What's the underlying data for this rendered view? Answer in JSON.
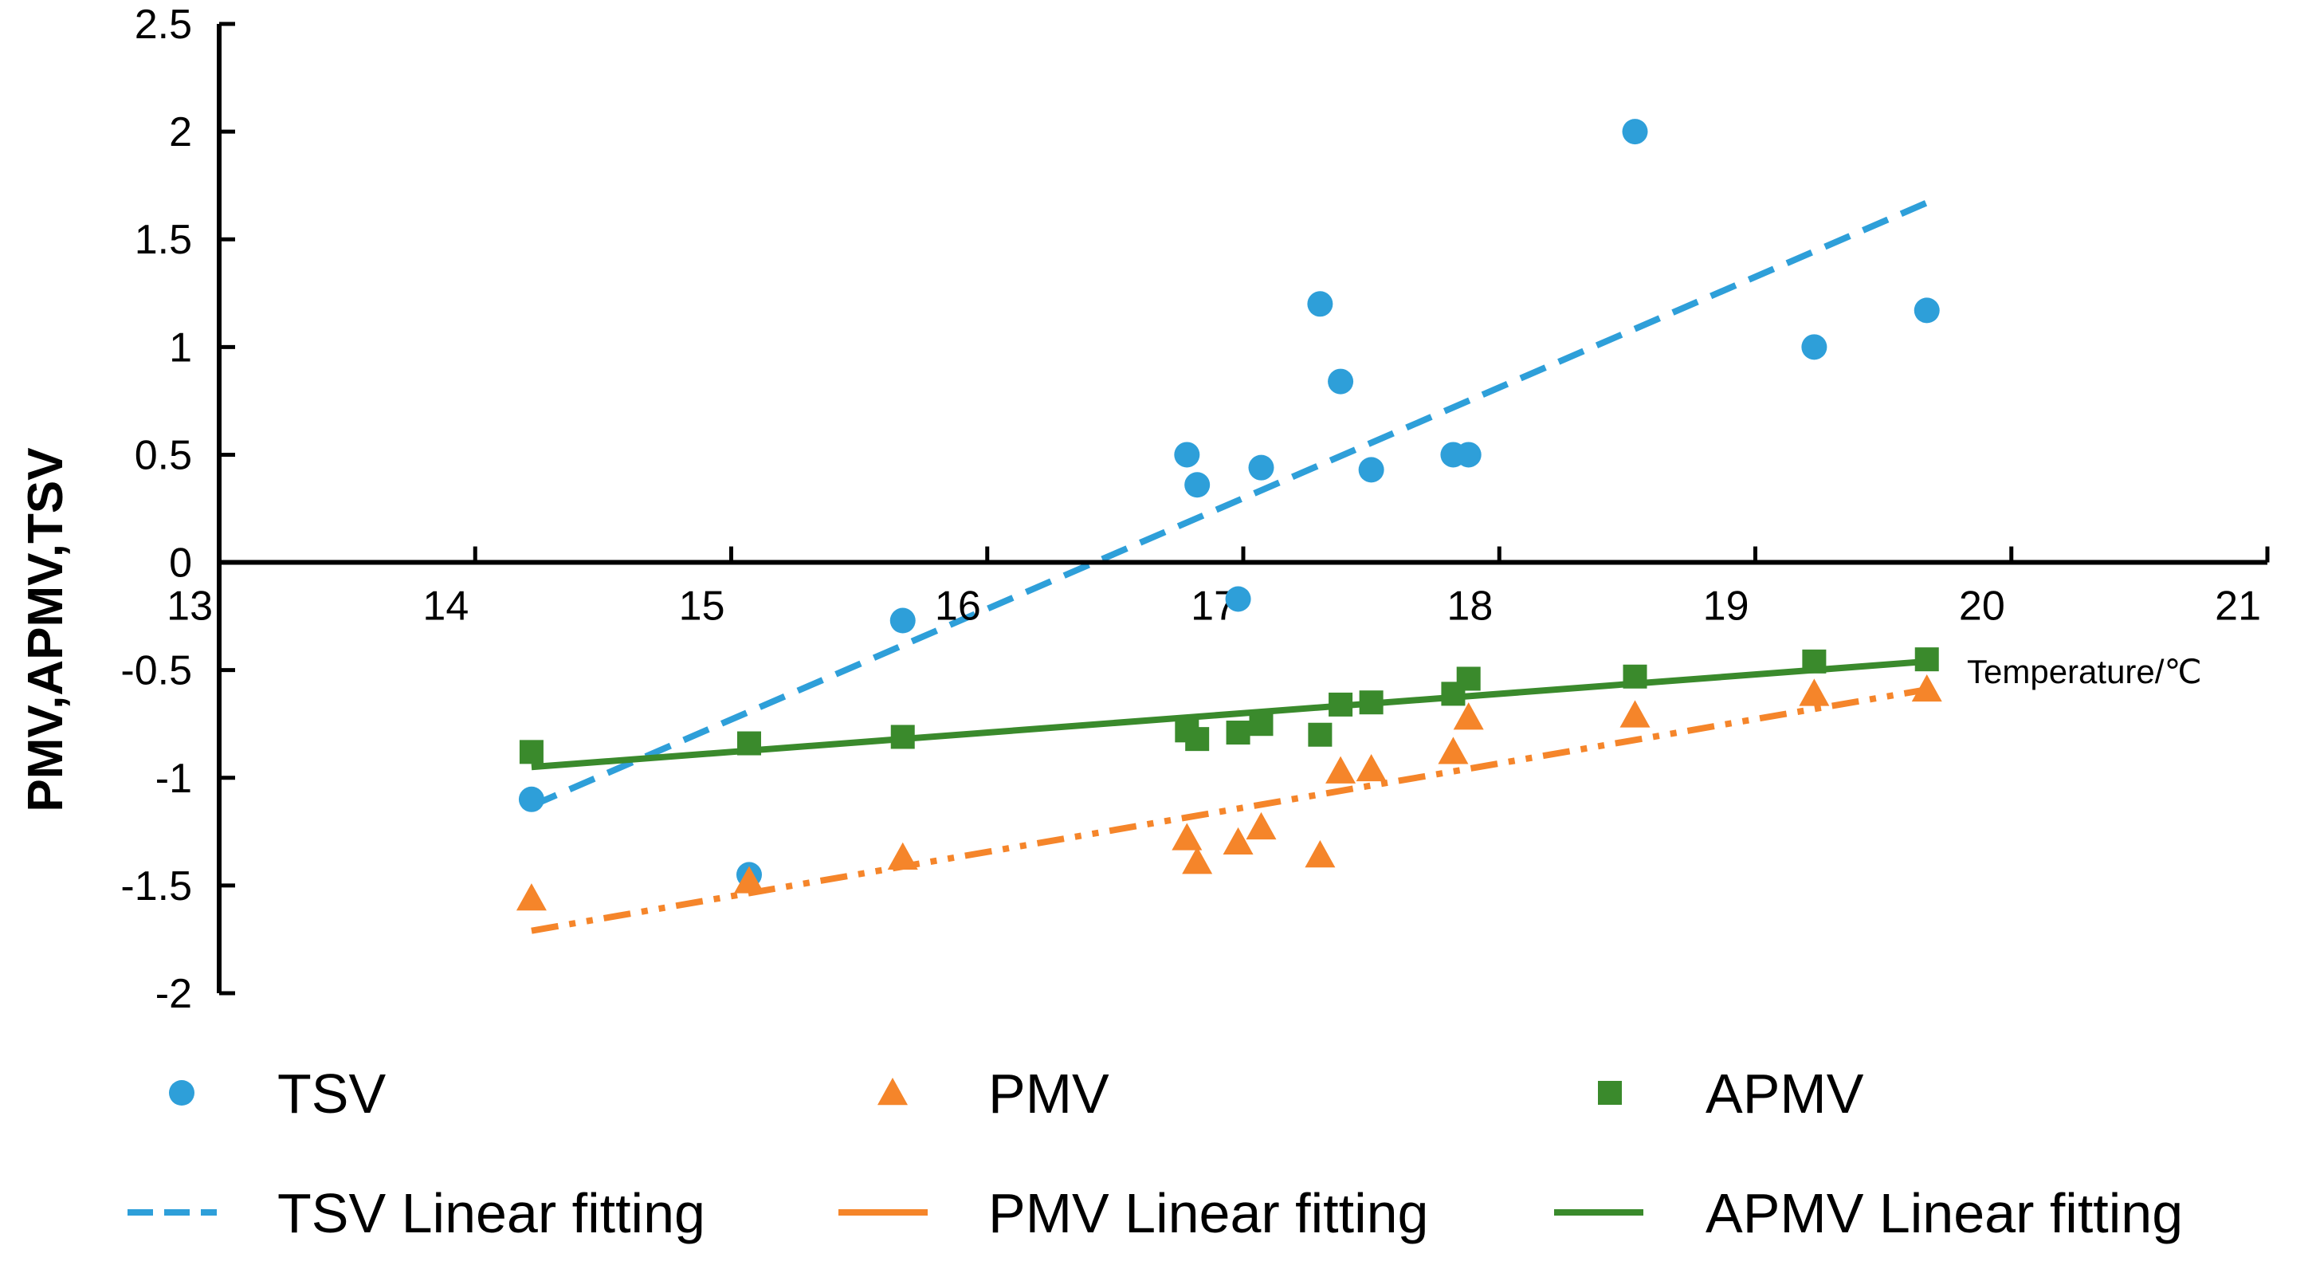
{
  "chart_data": {
    "type": "scatter",
    "xlabel": "Temperature/℃",
    "ylabel": "PMV,APMV,TSV",
    "xlim": [
      13,
      21
    ],
    "ylim": [
      -2,
      2.5
    ],
    "x_ticks": [
      "13",
      "14",
      "15",
      "16",
      "17",
      "18",
      "19",
      "20",
      "21"
    ],
    "y_ticks": [
      "2.5",
      "2",
      "1.5",
      "1",
      "0.5",
      "0",
      "-0.5",
      "-1",
      "-1.5",
      "-2"
    ],
    "x_axis_crosses_y_at": 0,
    "grid": false,
    "legend_position": "bottom",
    "series": [
      {
        "name": "TSV",
        "marker": "circle",
        "color": "#2e9fd9",
        "points": [
          [
            14.22,
            -1.1
          ],
          [
            15.07,
            -1.45
          ],
          [
            15.67,
            -0.27
          ],
          [
            16.78,
            0.5
          ],
          [
            16.82,
            0.36
          ],
          [
            16.98,
            -0.17
          ],
          [
            17.07,
            0.44
          ],
          [
            17.3,
            1.2
          ],
          [
            17.38,
            0.84
          ],
          [
            17.5,
            0.43
          ],
          [
            17.82,
            0.5
          ],
          [
            17.88,
            0.5
          ],
          [
            18.53,
            2.0
          ],
          [
            19.23,
            1.0
          ],
          [
            19.67,
            1.17
          ]
        ]
      },
      {
        "name": "PMV",
        "marker": "triangle",
        "color": "#f5852a",
        "points": [
          [
            14.22,
            -1.56
          ],
          [
            15.07,
            -1.48
          ],
          [
            15.67,
            -1.37
          ],
          [
            16.78,
            -1.28
          ],
          [
            16.82,
            -1.39
          ],
          [
            16.98,
            -1.3
          ],
          [
            17.07,
            -1.23
          ],
          [
            17.3,
            -1.36
          ],
          [
            17.38,
            -0.97
          ],
          [
            17.5,
            -0.96
          ],
          [
            17.82,
            -0.88
          ],
          [
            17.88,
            -0.72
          ],
          [
            18.53,
            -0.71
          ],
          [
            19.23,
            -0.61
          ],
          [
            19.67,
            -0.59
          ]
        ]
      },
      {
        "name": "APMV",
        "marker": "square",
        "color": "#3a8a2c",
        "points": [
          [
            14.22,
            -0.88
          ],
          [
            15.07,
            -0.84
          ],
          [
            15.67,
            -0.81
          ],
          [
            16.78,
            -0.78
          ],
          [
            16.82,
            -0.82
          ],
          [
            16.98,
            -0.79
          ],
          [
            17.07,
            -0.75
          ],
          [
            17.3,
            -0.8
          ],
          [
            17.38,
            -0.66
          ],
          [
            17.5,
            -0.65
          ],
          [
            17.82,
            -0.61
          ],
          [
            17.88,
            -0.54
          ],
          [
            18.53,
            -0.53
          ],
          [
            19.23,
            -0.46
          ],
          [
            19.67,
            -0.45
          ]
        ]
      }
    ],
    "fits": [
      {
        "name": "TSV Linear fitting",
        "color": "#2e9fd9",
        "dash": "dash",
        "x": [
          14.22,
          19.67
        ],
        "y": [
          -1.13,
          1.67
        ]
      },
      {
        "name": "PMV Linear fitting",
        "color": "#f5852a",
        "dash": "dashdotdot",
        "x": [
          14.22,
          19.67
        ],
        "y": [
          -1.71,
          -0.59
        ]
      },
      {
        "name": "APMV Linear fitting",
        "color": "#3a8a2c",
        "dash": "solid",
        "x": [
          14.22,
          19.67
        ],
        "y": [
          -0.95,
          -0.46
        ]
      }
    ]
  }
}
